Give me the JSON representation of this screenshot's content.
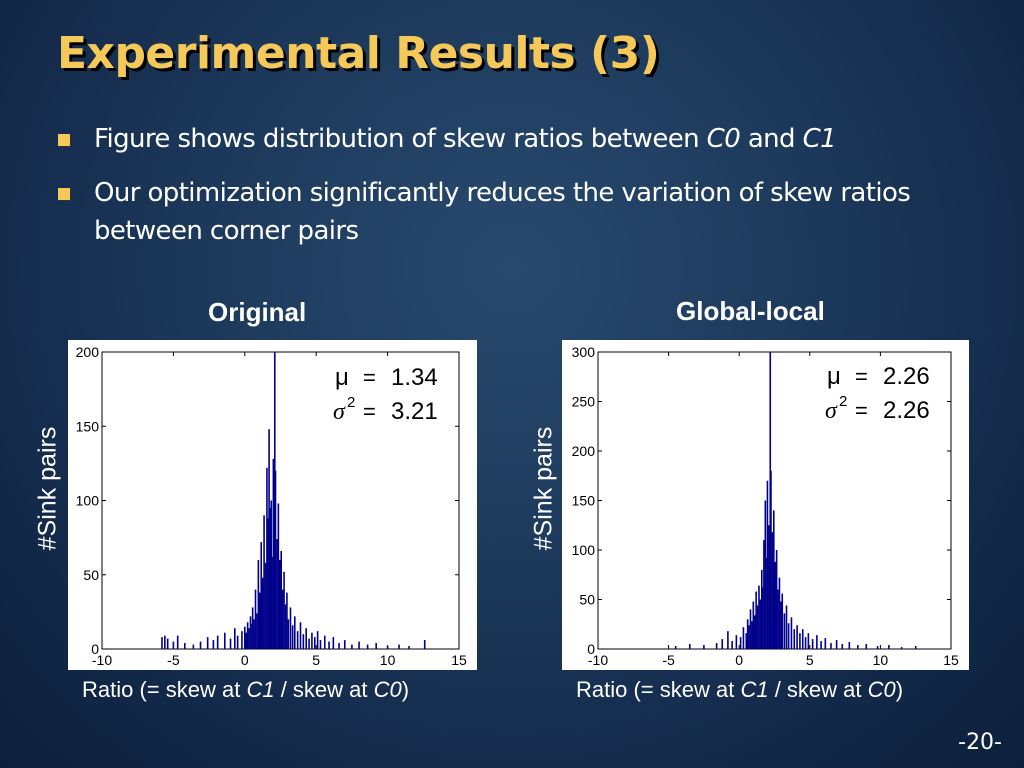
{
  "slide": {
    "title": "Experimental Results (3)",
    "bullets": [
      {
        "pre": "Figure shows distribution of skew ratios between ",
        "em1": "C0",
        "mid": " and ",
        "em2": "C1"
      },
      {
        "text": "Our optimization significantly reduces the variation of skew ratios between corner pairs"
      }
    ],
    "page_number": "-20-",
    "bullet_color": "#f5c85a",
    "title_color": "#f5c85a"
  },
  "figures": [
    {
      "heading": "Original",
      "ylabel": "#Sink pairs",
      "xlabel_pre": "Ratio (= skew at ",
      "xlabel_em1": "C1",
      "xlabel_mid": " / skew at ",
      "xlabel_em2": "C0",
      "xlabel_post": ")",
      "stats": {
        "mu_label": "μ",
        "mu_value": "1.34",
        "var_label": "σ",
        "var_value": "3.21"
      }
    },
    {
      "heading": "Global-local",
      "ylabel": "#Sink pairs",
      "xlabel_pre": "Ratio (= skew at ",
      "xlabel_em1": "C1",
      "xlabel_mid": " / skew at ",
      "xlabel_em2": "C0",
      "xlabel_post": ")",
      "stats": {
        "mu_label": "μ",
        "mu_value": "2.26",
        "var_label": "σ",
        "var_value": "2.26"
      }
    }
  ],
  "chart_data": [
    {
      "type": "bar",
      "title": "Original",
      "xlabel": "Ratio (= skew at C1 / skew at C0)",
      "ylabel": "#Sink pairs",
      "xlim": [
        -10,
        15
      ],
      "ylim": [
        0,
        200
      ],
      "xticks": [
        -10,
        -5,
        0,
        5,
        10,
        15
      ],
      "yticks": [
        0,
        50,
        100,
        150,
        200
      ],
      "grid": false,
      "bar_color": "#00008b",
      "bins": [
        [
          -5.8,
          8
        ],
        [
          -5.6,
          9
        ],
        [
          -5.4,
          7
        ],
        [
          -5.0,
          5
        ],
        [
          -4.7,
          9
        ],
        [
          -4.2,
          4
        ],
        [
          -3.6,
          3
        ],
        [
          -3.1,
          5
        ],
        [
          -2.6,
          8
        ],
        [
          -2.2,
          6
        ],
        [
          -1.9,
          9
        ],
        [
          -1.4,
          11
        ],
        [
          -1.0,
          7
        ],
        [
          -0.7,
          14
        ],
        [
          -0.5,
          9
        ],
        [
          -0.2,
          12
        ],
        [
          0.0,
          15
        ],
        [
          0.1,
          11
        ],
        [
          0.2,
          18
        ],
        [
          0.3,
          14
        ],
        [
          0.4,
          22
        ],
        [
          0.5,
          17
        ],
        [
          0.55,
          28
        ],
        [
          0.65,
          20
        ],
        [
          0.75,
          40
        ],
        [
          0.85,
          24
        ],
        [
          0.95,
          60
        ],
        [
          1.05,
          38
        ],
        [
          1.15,
          72
        ],
        [
          1.25,
          48
        ],
        [
          1.35,
          90
        ],
        [
          1.45,
          58
        ],
        [
          1.55,
          122
        ],
        [
          1.6,
          88
        ],
        [
          1.7,
          148
        ],
        [
          1.75,
          95
        ],
        [
          1.85,
          100
        ],
        [
          1.9,
          62
        ],
        [
          2.0,
          128
        ],
        [
          2.05,
          80
        ],
        [
          2.1,
          200
        ],
        [
          2.15,
          120
        ],
        [
          2.25,
          74
        ],
        [
          2.35,
          98
        ],
        [
          2.45,
          60
        ],
        [
          2.55,
          66
        ],
        [
          2.65,
          40
        ],
        [
          2.75,
          52
        ],
        [
          2.85,
          30
        ],
        [
          2.95,
          38
        ],
        [
          3.05,
          20
        ],
        [
          3.2,
          28
        ],
        [
          3.35,
          16
        ],
        [
          3.5,
          22
        ],
        [
          3.7,
          12
        ],
        [
          3.9,
          18
        ],
        [
          4.1,
          10
        ],
        [
          4.3,
          14
        ],
        [
          4.5,
          7
        ],
        [
          4.7,
          11
        ],
        [
          4.9,
          8
        ],
        [
          5.1,
          12
        ],
        [
          5.3,
          6
        ],
        [
          5.6,
          9
        ],
        [
          5.9,
          5
        ],
        [
          6.2,
          8
        ],
        [
          6.6,
          4
        ],
        [
          7.0,
          6
        ],
        [
          7.5,
          3
        ],
        [
          8.0,
          5
        ],
        [
          8.6,
          3
        ],
        [
          9.2,
          4
        ],
        [
          10.0,
          2
        ],
        [
          10.8,
          3
        ],
        [
          11.5,
          2
        ],
        [
          12.6,
          6
        ]
      ]
    },
    {
      "type": "bar",
      "title": "Global-local",
      "xlabel": "Ratio (= skew at C1 / skew at C0)",
      "ylabel": "#Sink pairs",
      "xlim": [
        -10,
        15
      ],
      "ylim": [
        0,
        300
      ],
      "xticks": [
        -10,
        -5,
        0,
        5,
        10,
        15
      ],
      "yticks": [
        0,
        50,
        100,
        150,
        200,
        250,
        300
      ],
      "grid": false,
      "bar_color": "#00008b",
      "bins": [
        [
          -4.5,
          3
        ],
        [
          -3.5,
          5
        ],
        [
          -2.5,
          4
        ],
        [
          -1.6,
          6
        ],
        [
          -1.2,
          10
        ],
        [
          -0.8,
          18
        ],
        [
          -0.5,
          8
        ],
        [
          -0.2,
          14
        ],
        [
          0.1,
          12
        ],
        [
          0.3,
          22
        ],
        [
          0.5,
          16
        ],
        [
          0.6,
          30
        ],
        [
          0.7,
          24
        ],
        [
          0.8,
          40
        ],
        [
          0.9,
          28
        ],
        [
          1.0,
          48
        ],
        [
          1.1,
          34
        ],
        [
          1.2,
          58
        ],
        [
          1.3,
          44
        ],
        [
          1.4,
          64
        ],
        [
          1.5,
          50
        ],
        [
          1.6,
          80
        ],
        [
          1.65,
          62
        ],
        [
          1.75,
          110
        ],
        [
          1.8,
          70
        ],
        [
          1.85,
          150
        ],
        [
          1.9,
          92
        ],
        [
          2.0,
          170
        ],
        [
          2.1,
          125
        ],
        [
          2.2,
          300
        ],
        [
          2.25,
          180
        ],
        [
          2.35,
          118
        ],
        [
          2.45,
          140
        ],
        [
          2.55,
          88
        ],
        [
          2.65,
          100
        ],
        [
          2.75,
          60
        ],
        [
          2.85,
          72
        ],
        [
          2.95,
          48
        ],
        [
          3.05,
          56
        ],
        [
          3.2,
          36
        ],
        [
          3.35,
          44
        ],
        [
          3.5,
          26
        ],
        [
          3.7,
          32
        ],
        [
          3.9,
          20
        ],
        [
          4.1,
          24
        ],
        [
          4.3,
          16
        ],
        [
          4.5,
          20
        ],
        [
          4.7,
          12
        ],
        [
          4.9,
          16
        ],
        [
          5.2,
          10
        ],
        [
          5.5,
          14
        ],
        [
          5.8,
          8
        ],
        [
          6.1,
          11
        ],
        [
          6.5,
          6
        ],
        [
          6.9,
          9
        ],
        [
          7.3,
          5
        ],
        [
          7.8,
          7
        ],
        [
          8.4,
          4
        ],
        [
          9.0,
          5
        ],
        [
          9.8,
          3
        ],
        [
          10.6,
          4
        ],
        [
          11.5,
          2
        ],
        [
          12.5,
          3
        ]
      ]
    }
  ]
}
